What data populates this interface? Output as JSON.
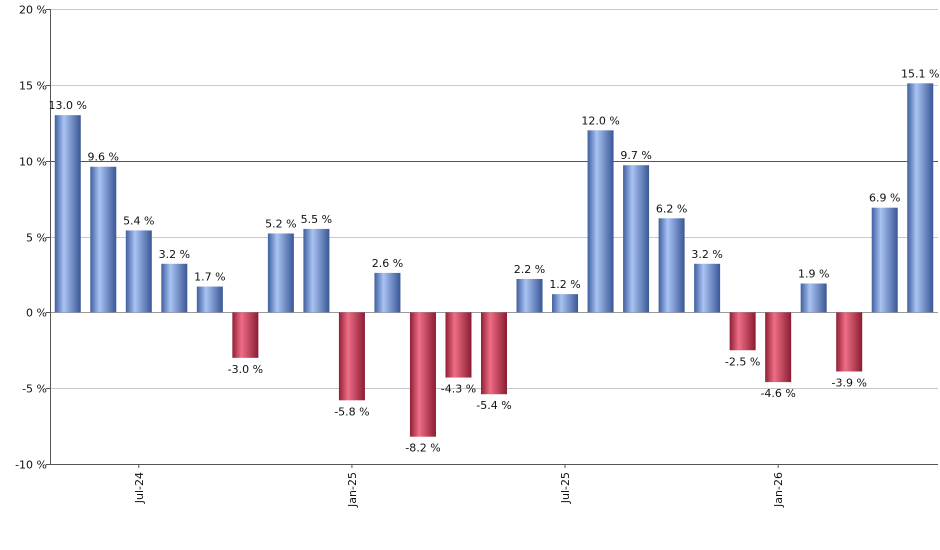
{
  "chart_data": {
    "type": "bar",
    "title": "",
    "xlabel": "",
    "ylabel": "",
    "ylim": [
      -10,
      20
    ],
    "grid": true,
    "y_ticks": [
      -10,
      -5,
      0,
      5,
      10,
      15,
      20
    ],
    "y_tick_labels": [
      "-10 %",
      "-5 %",
      "0 %",
      "5 %",
      "10 %",
      "15 %",
      "20 %"
    ],
    "x_tick_labels": [
      {
        "label": "Jul-24",
        "index": 2
      },
      {
        "label": "Jan-25",
        "index": 8
      },
      {
        "label": "Jul-25",
        "index": 14
      },
      {
        "label": "Jan-26",
        "index": 20
      }
    ],
    "reference_line": {
      "value": 10,
      "color": "#1f7a1f"
    },
    "colors": {
      "positive": "#5b83d6",
      "negative": "#cc3355"
    },
    "values": [
      13.0,
      9.6,
      5.4,
      3.2,
      1.7,
      -3.0,
      5.2,
      5.5,
      -5.8,
      2.6,
      -8.2,
      -4.3,
      -5.4,
      2.2,
      1.2,
      12.0,
      9.7,
      6.2,
      3.2,
      -2.5,
      -4.6,
      1.9,
      -3.9,
      6.9,
      15.1
    ],
    "value_labels": [
      "13.0 %",
      "9.6 %",
      "5.4 %",
      "3.2 %",
      "1.7 %",
      "-3.0 %",
      "5.2 %",
      "5.5 %",
      "-5.8 %",
      "2.6 %",
      "-8.2 %",
      "-4.3 %",
      "-5.4 %",
      "2.2 %",
      "1.2 %",
      "12.0 %",
      "9.7 %",
      "6.2 %",
      "3.2 %",
      "-2.5 %",
      "-4.6 %",
      "1.9 %",
      "-3.9 %",
      "6.9 %",
      "15.1 %"
    ]
  }
}
